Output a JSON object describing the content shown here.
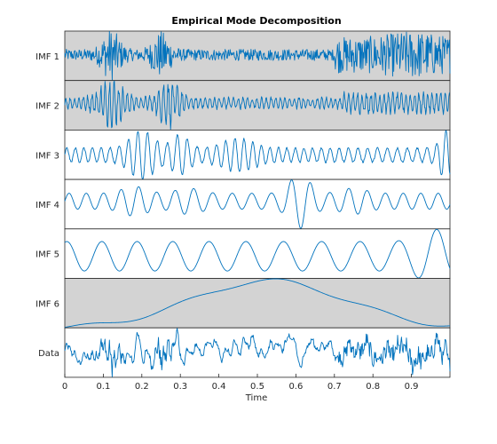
{
  "chart_data": {
    "type": "line",
    "title": "Empirical Mode Decomposition",
    "xlabel": "Time",
    "xlim": [
      0,
      1
    ],
    "x_ticks": [
      "0",
      "0.1",
      "0.2",
      "0.3",
      "0.4",
      "0.5",
      "0.6",
      "0.7",
      "0.8",
      "0.9"
    ],
    "line_color": "#0072BD",
    "shaded_panel_color": "#D3D3D3",
    "panels": [
      {
        "label": "IMF 1",
        "shaded": true
      },
      {
        "label": "IMF 2",
        "shaded": true
      },
      {
        "label": "IMF 3",
        "shaded": false
      },
      {
        "label": "IMF 4",
        "shaded": false
      },
      {
        "label": "IMF 5",
        "shaded": false
      },
      {
        "label": "IMF 6",
        "shaded": true
      },
      {
        "label": "Data",
        "shaded": false
      }
    ]
  }
}
